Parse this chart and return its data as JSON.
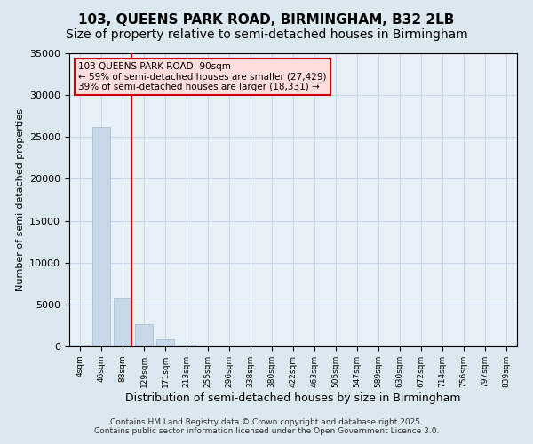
{
  "title1": "103, QUEENS PARK ROAD, BIRMINGHAM, B32 2LB",
  "title2": "Size of property relative to semi-detached houses in Birmingham",
  "xlabel": "Distribution of semi-detached houses by size in Birmingham",
  "ylabel": "Number of semi-detached properties",
  "annotation_line1": "103 QUEENS PARK ROAD: 90sqm",
  "annotation_line2": "← 59% of semi-detached houses are smaller (27,429)",
  "annotation_line3": "39% of semi-detached houses are larger (18,331) →",
  "footer1": "Contains HM Land Registry data © Crown copyright and database right 2025.",
  "footer2": "Contains public sector information licensed under the Open Government Licence 3.0.",
  "bin_labels": [
    "4sqm",
    "46sqm",
    "88sqm",
    "129sqm",
    "171sqm",
    "213sqm",
    "255sqm",
    "296sqm",
    "338sqm",
    "380sqm",
    "422sqm",
    "463sqm",
    "505sqm",
    "547sqm",
    "589sqm",
    "630sqm",
    "672sqm",
    "714sqm",
    "756sqm",
    "797sqm",
    "839sqm"
  ],
  "bar_values": [
    200,
    26200,
    5700,
    2700,
    900,
    200,
    50,
    30,
    0,
    0,
    0,
    0,
    0,
    0,
    0,
    0,
    0,
    0,
    0,
    0,
    0
  ],
  "bar_color": "#c8d8e8",
  "bar_edge_color": "#a0b8cc",
  "grid_color": "#c8d8e8",
  "bg_color": "#dce8f0",
  "plot_bg_color": "#e8f0f8",
  "red_line_x": 2,
  "red_line_color": "#cc0000",
  "ylim": [
    0,
    35000
  ],
  "yticks": [
    0,
    5000,
    10000,
    15000,
    20000,
    25000,
    30000,
    35000
  ],
  "property_sqm": 90,
  "annotation_box_color": "#ffdddd",
  "annotation_box_edge_color": "#cc0000",
  "title1_fontsize": 11,
  "title2_fontsize": 10,
  "footer_fontsize": 6.5
}
